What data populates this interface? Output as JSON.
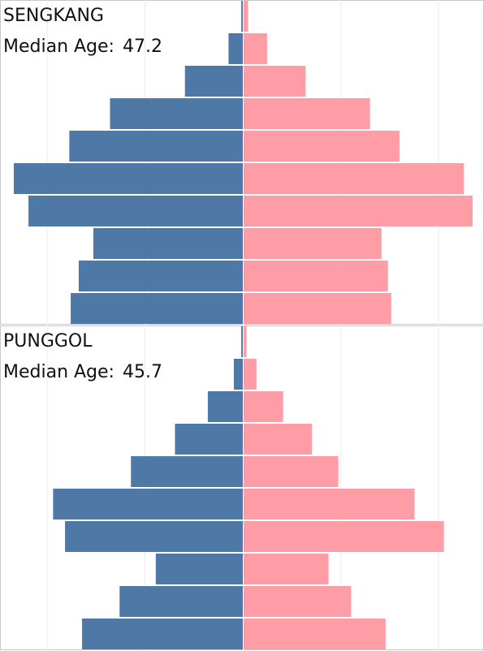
{
  "chart_data": [
    {
      "type": "bar",
      "orientation": "horizontal-pyramid",
      "title": "SENGKANG",
      "median_label": "Median Age:",
      "median_value": "47.2",
      "xlim": [
        -1175,
        1175
      ],
      "gridlines": [
        -1000,
        -500,
        500,
        1000
      ],
      "series": [
        {
          "color": "#4e79a7",
          "values": [
            8,
            73,
            296,
            679,
            887,
            1171,
            1096,
            764,
            839,
            880
          ]
        },
        {
          "color": "#ff9da7",
          "values": [
            23,
            120,
            317,
            646,
            797,
            1126,
            1171,
            705,
            738,
            755
          ]
        }
      ]
    },
    {
      "type": "bar",
      "orientation": "horizontal-pyramid",
      "title": "PUNGGOL",
      "median_label": "Median Age:",
      "median_value": "45.7",
      "xlim": [
        -1175,
        1175
      ],
      "gridlines": [
        -1000,
        -500,
        500,
        1000
      ],
      "series": [
        {
          "color": "#4e79a7",
          "values": [
            8,
            46,
            179,
            347,
            572,
            970,
            909,
            445,
            630,
            822
          ]
        },
        {
          "color": "#ff9da7",
          "values": [
            15,
            66,
            202,
            350,
            484,
            874,
            1024,
            434,
            550,
            726
          ]
        }
      ]
    }
  ]
}
